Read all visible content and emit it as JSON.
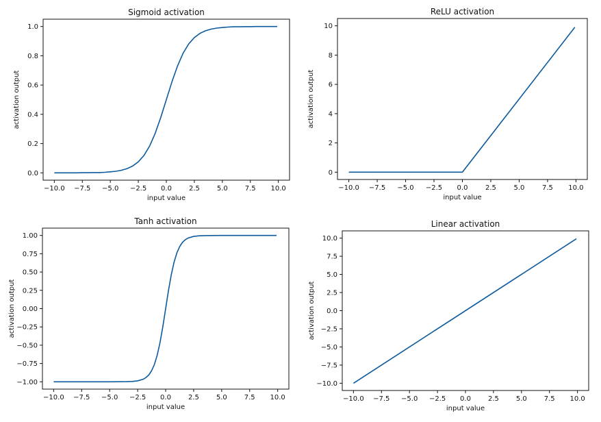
{
  "line_color": "#0b5a9e",
  "chart_data": [
    {
      "type": "line",
      "title": "Sigmoid activation",
      "xlabel": "input value",
      "ylabel": "activation output",
      "xlim": [
        -11,
        11
      ],
      "ylim": [
        -0.05,
        1.05
      ],
      "grid": false,
      "xticks": [
        "-10.0",
        "-7.5",
        "-5.0",
        "-2.5",
        "0.0",
        "2.5",
        "5.0",
        "7.5",
        "10.0"
      ],
      "yticks": [
        "0.0",
        "0.2",
        "0.4",
        "0.6",
        "0.8",
        "1.0"
      ],
      "x": [
        -10,
        -9.5,
        -9,
        -8.5,
        -8,
        -7.5,
        -7,
        -6.5,
        -6,
        -5.5,
        -5,
        -4.5,
        -4,
        -3.5,
        -3,
        -2.5,
        -2,
        -1.5,
        -1,
        -0.5,
        0,
        0.5,
        1,
        1.5,
        2,
        2.5,
        3,
        3.5,
        4,
        4.5,
        5,
        5.5,
        6,
        6.5,
        7,
        7.5,
        8,
        8.5,
        9,
        9.5,
        9.9
      ],
      "y": [
        0,
        0,
        0,
        0,
        0,
        0.001,
        0.001,
        0.002,
        0.002,
        0.004,
        0.007,
        0.011,
        0.018,
        0.029,
        0.047,
        0.076,
        0.119,
        0.182,
        0.269,
        0.378,
        0.5,
        0.622,
        0.731,
        0.818,
        0.881,
        0.924,
        0.953,
        0.971,
        0.982,
        0.989,
        0.993,
        0.996,
        0.998,
        0.998,
        0.999,
        0.999,
        1,
        1,
        1,
        1,
        1
      ]
    },
    {
      "type": "line",
      "title": "ReLU activation",
      "xlabel": "input value",
      "ylabel": "activation output",
      "xlim": [
        -11,
        11
      ],
      "ylim": [
        -0.5,
        10.5
      ],
      "grid": false,
      "xticks": [
        "-10.0",
        "-7.5",
        "-5.0",
        "-2.5",
        "0.0",
        "2.5",
        "5.0",
        "7.5",
        "10.0"
      ],
      "yticks": [
        "0",
        "2",
        "4",
        "6",
        "8",
        "10"
      ],
      "x": [
        -10,
        0,
        9.9
      ],
      "y": [
        0,
        0,
        9.9
      ]
    },
    {
      "type": "line",
      "title": "Tanh activation",
      "xlabel": "input value",
      "ylabel": "activation output",
      "xlim": [
        -11,
        11
      ],
      "ylim": [
        -1.1,
        1.1
      ],
      "grid": false,
      "xticks": [
        "-10.0",
        "-7.5",
        "-5.0",
        "-2.5",
        "0.0",
        "2.5",
        "5.0",
        "7.5",
        "10.0"
      ],
      "yticks": [
        "-1.00",
        "-0.75",
        "-0.50",
        "-0.25",
        "0.00",
        "0.25",
        "0.50",
        "0.75",
        "1.00"
      ],
      "x": [
        -10,
        -5,
        -4,
        -3.5,
        -3,
        -2.5,
        -2,
        -1.75,
        -1.5,
        -1.25,
        -1,
        -0.75,
        -0.5,
        -0.25,
        0,
        0.25,
        0.5,
        0.75,
        1,
        1.25,
        1.5,
        1.75,
        2,
        2.5,
        3,
        3.5,
        4,
        5,
        9.9
      ],
      "y": [
        -1,
        -1,
        -0.999,
        -0.998,
        -0.995,
        -0.987,
        -0.964,
        -0.941,
        -0.905,
        -0.848,
        -0.762,
        -0.635,
        -0.462,
        -0.245,
        0,
        0.245,
        0.462,
        0.635,
        0.762,
        0.848,
        0.905,
        0.941,
        0.964,
        0.987,
        0.995,
        0.998,
        0.999,
        1,
        1
      ]
    },
    {
      "type": "line",
      "title": "Linear activation",
      "xlabel": "input value",
      "ylabel": "activation output",
      "xlim": [
        -11,
        11
      ],
      "ylim": [
        -11,
        11
      ],
      "grid": false,
      "xticks": [
        "-10.0",
        "-7.5",
        "-5.0",
        "-2.5",
        "0.0",
        "2.5",
        "5.0",
        "7.5",
        "10.0"
      ],
      "yticks": [
        "-10.0",
        "-7.5",
        "-5.0",
        "-2.5",
        "0.0",
        "2.5",
        "5.0",
        "7.5",
        "10.0"
      ],
      "x": [
        -10,
        9.9
      ],
      "y": [
        -10,
        9.9
      ]
    }
  ]
}
